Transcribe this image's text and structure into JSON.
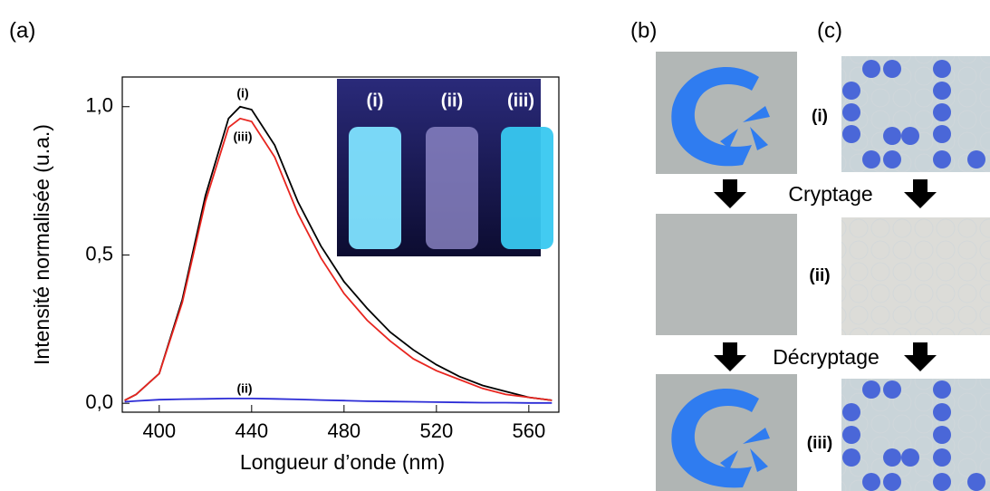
{
  "chart_data": {
    "type": "line",
    "xlabel": "Longueur d’onde (nm)",
    "ylabel": "Intensité normalisée (u.a.)",
    "x": [
      385,
      390,
      400,
      410,
      420,
      430,
      435,
      440,
      450,
      460,
      470,
      480,
      490,
      500,
      510,
      520,
      530,
      540,
      550,
      560,
      570
    ],
    "series": [
      {
        "name": "(i)",
        "color": "#000000",
        "values": [
          0.01,
          0.03,
          0.1,
          0.35,
          0.7,
          0.96,
          1.0,
          0.99,
          0.87,
          0.68,
          0.53,
          0.41,
          0.32,
          0.24,
          0.18,
          0.13,
          0.09,
          0.06,
          0.04,
          0.02,
          0.01
        ]
      },
      {
        "name": "(iii)",
        "color": "#e8251f",
        "values": [
          0.01,
          0.03,
          0.1,
          0.34,
          0.68,
          0.93,
          0.96,
          0.95,
          0.83,
          0.64,
          0.49,
          0.37,
          0.28,
          0.21,
          0.15,
          0.11,
          0.08,
          0.05,
          0.03,
          0.02,
          0.01
        ]
      },
      {
        "name": "(ii)",
        "color": "#2b2bd6",
        "values": [
          0.005,
          0.008,
          0.012,
          0.014,
          0.015,
          0.016,
          0.016,
          0.016,
          0.015,
          0.013,
          0.011,
          0.009,
          0.007,
          0.006,
          0.005,
          0.004,
          0.003,
          0.002,
          0.002,
          0.001,
          0.001
        ]
      }
    ],
    "annotations": [
      "(i)",
      "(iii)",
      "(ii)"
    ],
    "xlim": [
      384,
      573
    ],
    "xticks": [
      400,
      440,
      480,
      520,
      560
    ],
    "ylim": [
      -0.03,
      1.1
    ],
    "yticks": [
      {
        "value": 0,
        "label": "0,0"
      },
      {
        "value": 0.5,
        "label": "0,5"
      },
      {
        "value": 1,
        "label": "1,0"
      }
    ]
  },
  "panels": {
    "a": "(a)",
    "b": "(b)",
    "c": "(c)"
  },
  "inset_labels": [
    "(i)",
    "(ii)",
    "(iii)"
  ],
  "row_labels": [
    "(i)",
    "(ii)",
    "(iii)"
  ],
  "steps": [
    "Cryptage",
    "Décryptage"
  ]
}
